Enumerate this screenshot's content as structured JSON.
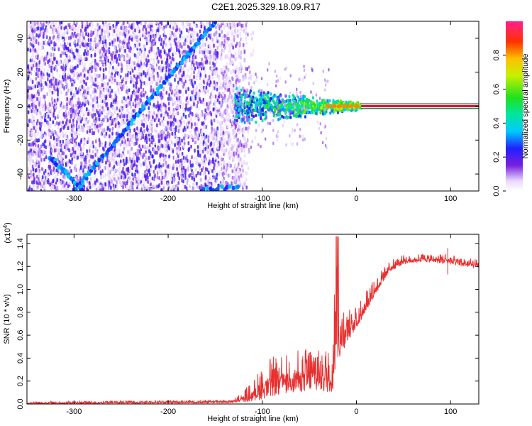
{
  "title": "C2E1.2025.329.18.09.R17",
  "chart_data": [
    {
      "type": "heatmap",
      "xlabel": "Height of straight line (km)",
      "ylabel": "Frequency (Hz)",
      "xlim": [
        -350,
        130
      ],
      "ylim": [
        -50,
        50
      ],
      "xticks": [
        -300,
        -200,
        -100,
        0,
        100
      ],
      "yticks": [
        -40,
        -20,
        0,
        20,
        40
      ],
      "colorbar": {
        "label": "Normalized spectral amplitude",
        "range": [
          0.0,
          1.0
        ],
        "ticks": [
          "0.0",
          "0.2",
          "0.4",
          "0.6",
          "0.8"
        ]
      },
      "features": {
        "noise_region_x": [
          -350,
          -125
        ],
        "doppler_trace_upper": {
          "x": [
            -300,
            -150
          ],
          "y": [
            -50,
            50
          ]
        },
        "doppler_trace_lower": {
          "x": [
            -325,
            -290
          ],
          "y": [
            -30,
            -50
          ]
        },
        "convergence": {
          "x": [
            -130,
            5
          ],
          "half_width_start": 12,
          "half_width_end": 2
        },
        "carrier_line": {
          "x": [
            5,
            130
          ],
          "y": 0
        }
      }
    },
    {
      "type": "line",
      "xlabel": "Height of straight line (km)",
      "ylabel": "SNR (10 * v/v)",
      "y_multiplier": "(x10",
      "y_multiplier_exp": "4",
      "y_multiplier_close": ")",
      "xlim": [
        -350,
        130
      ],
      "ylim": [
        0,
        1.48
      ],
      "xticks": [
        -300,
        -200,
        -100,
        0,
        100
      ],
      "yticks": [
        "0.0",
        "0.2",
        "0.4",
        "0.6",
        "0.8",
        "1.0",
        "1.2",
        "1.4"
      ],
      "series": [
        {
          "color": "#e83030",
          "envelope": {
            "x": [
              -350,
              -130,
              -110,
              -95,
              -70,
              -50,
              -35,
              -25,
              -22,
              -18,
              -12,
              -5,
              0,
              10,
              20,
              35,
              50,
              70,
              95,
              110,
              130
            ],
            "lo": [
              0.0,
              0.01,
              0.02,
              0.05,
              0.1,
              0.1,
              0.1,
              0.1,
              0.35,
              0.4,
              0.5,
              0.6,
              0.65,
              0.8,
              0.95,
              1.15,
              1.22,
              1.24,
              1.22,
              1.2,
              1.18
            ],
            "hi": [
              0.02,
              0.04,
              0.2,
              0.4,
              0.45,
              0.5,
              0.55,
              0.65,
              1.45,
              0.8,
              0.9,
              0.8,
              0.85,
              1.0,
              1.1,
              1.25,
              1.3,
              1.31,
              1.32,
              1.28,
              1.26
            ]
          }
        }
      ]
    }
  ]
}
